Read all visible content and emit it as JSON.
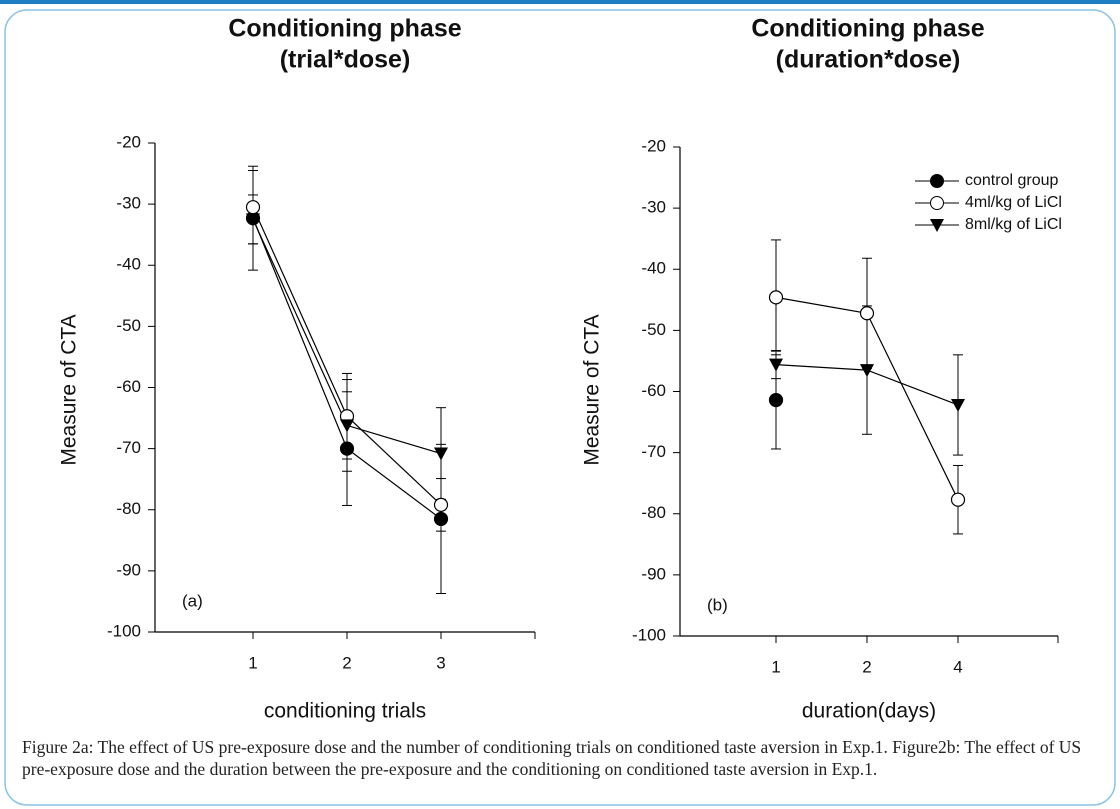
{
  "chart_data": [
    {
      "type": "line",
      "title": "Conditioning phase",
      "subtitle": "(trial*dose)",
      "x_label": "conditioning trials",
      "y_label": "Measure of CTA",
      "annotation": "(a)",
      "categories": [
        "1",
        "2",
        "3"
      ],
      "ylim": [
        -100,
        -20
      ],
      "yticks": [
        -20,
        -30,
        -40,
        -50,
        -60,
        -70,
        -80,
        -90,
        -100
      ],
      "legend": false,
      "series": [
        {
          "marker": "filled-circle",
          "color": "#000000",
          "values": [
            -32.3,
            -70,
            -81.5
          ],
          "errors": [
            8.5,
            9.3,
            12.2
          ]
        },
        {
          "marker": "open-circle",
          "color": "#000000",
          "values": [
            -30.5,
            -64.7,
            -79.2
          ],
          "errors": [
            6,
            7,
            4.3
          ]
        },
        {
          "marker": "triangle-down",
          "color": "#000000",
          "values": [
            -32.5,
            -66.2,
            -70.8
          ],
          "errors": [
            4,
            7.5,
            7.5
          ]
        }
      ]
    },
    {
      "type": "line",
      "title": "Conditioning phase",
      "subtitle": "(duration*dose)",
      "x_label": "duration(days)",
      "y_label": "Measure of CTA",
      "annotation": "(b)",
      "categories": [
        "1",
        "2",
        "4"
      ],
      "ylim": [
        -100,
        -20
      ],
      "yticks": [
        -20,
        -30,
        -40,
        -50,
        -60,
        -70,
        -80,
        -90,
        -100
      ],
      "legend": true,
      "series": [
        {
          "name": "control group",
          "marker": "filled-circle",
          "color": "#000000",
          "values": [
            -61.4,
            null,
            null
          ],
          "errors": [
            8,
            null,
            null
          ]
        },
        {
          "name": "4ml/kg of LiCl",
          "marker": "open-circle",
          "color": "#000000",
          "values": [
            -44.6,
            -47.2,
            -77.7
          ],
          "errors": [
            9.4,
            9,
            5.6
          ]
        },
        {
          "name": "8ml/kg of LiCl",
          "marker": "triangle-down",
          "color": "#000000",
          "values": [
            -55.6,
            -56.5,
            -62.2
          ],
          "errors": [
            2.3,
            10.5,
            8.2
          ]
        }
      ]
    }
  ],
  "caption": "Figure 2a: The effect of US pre-exposure dose and the number of conditioning trials on conditioned taste aversion in Exp.1. Figure2b: The effect of US pre-exposure dose and the duration between the pre-exposure and the conditioning on conditioned taste aversion in Exp.1."
}
